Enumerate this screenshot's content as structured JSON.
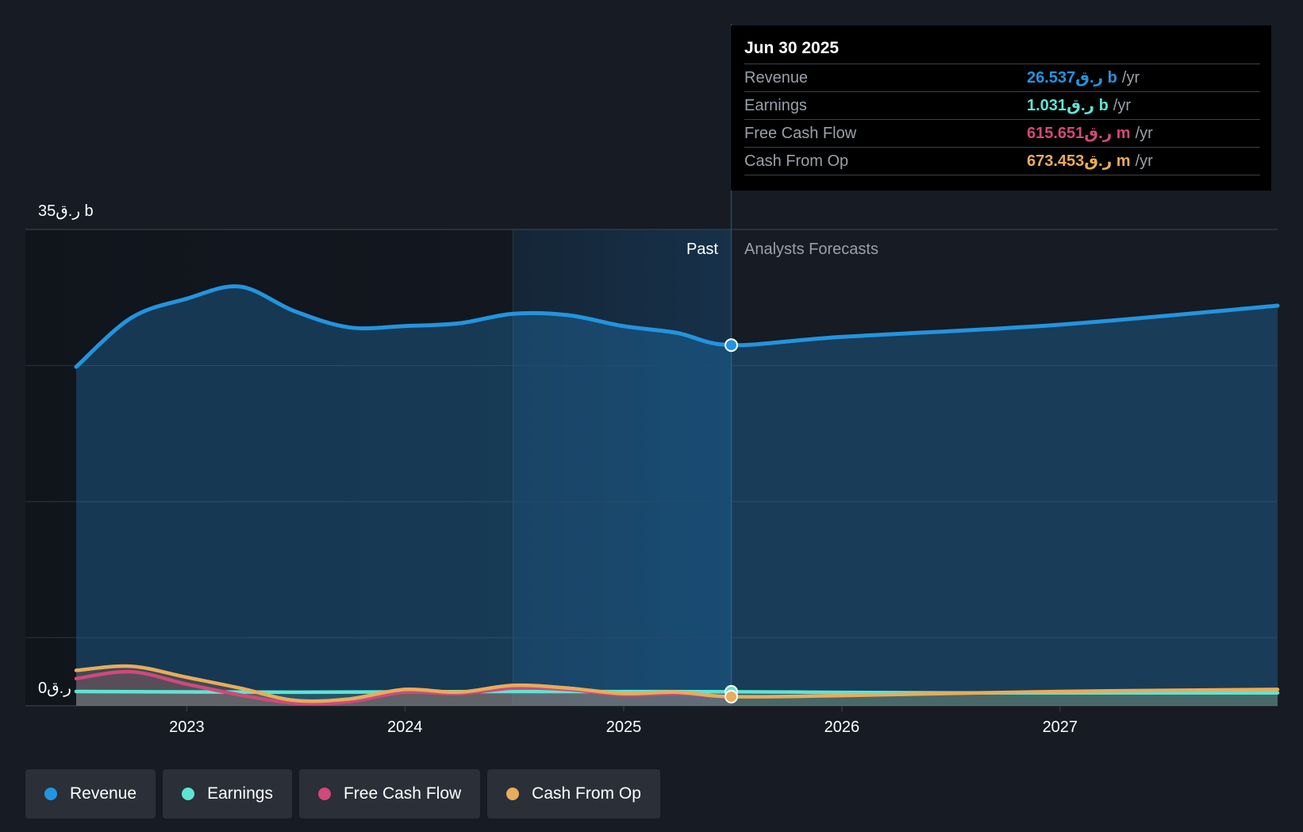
{
  "colors": {
    "revenue": "#2394df",
    "earnings": "#5ee4d3",
    "free_cash_flow": "#d1487b",
    "cash_from_op": "#e8ac5a",
    "background": "#161b24"
  },
  "tooltip": {
    "date": "Jun 30 2025",
    "rows": [
      {
        "label": "Revenue",
        "value": "26.537ر.ق b",
        "unit": "/yr"
      },
      {
        "label": "Earnings",
        "value": "1.031ر.ق b",
        "unit": "/yr"
      },
      {
        "label": "Free Cash Flow",
        "value": "615.651ر.ق m",
        "unit": "/yr"
      },
      {
        "label": "Cash From Op",
        "value": "673.453ر.ق m",
        "unit": "/yr"
      }
    ]
  },
  "legend": [
    "Revenue",
    "Earnings",
    "Free Cash Flow",
    "Cash From Op"
  ],
  "chart_data": {
    "type": "area",
    "y_top_label": "35ر.ق b",
    "y_bottom_label": "0ر.ق",
    "ylim": [
      0,
      35
    ],
    "ylim_unit": "billions",
    "xlim": [
      "2022-06-30",
      "2027-12-31"
    ],
    "x_ticks": [
      "2023",
      "2024",
      "2025",
      "2026",
      "2027"
    ],
    "past_label": "Past",
    "forecast_label": "Analysts Forecasts",
    "divider_date": "2025-06-30",
    "highlight_start_date": "2024-06-30",
    "grid": true,
    "legend_position": "bottom-left",
    "series": [
      {
        "name": "Revenue",
        "key": "revenue",
        "past": [
          [
            "2022-06-30",
            24.9
          ],
          [
            "2022-09-30",
            28.5
          ],
          [
            "2022-12-31",
            29.9
          ],
          [
            "2023-03-31",
            30.8
          ],
          [
            "2023-06-30",
            29.0
          ],
          [
            "2023-09-30",
            27.8
          ],
          [
            "2023-12-31",
            27.9
          ],
          [
            "2024-03-31",
            28.1
          ],
          [
            "2024-06-30",
            28.8
          ],
          [
            "2024-09-30",
            28.7
          ],
          [
            "2024-12-31",
            27.9
          ],
          [
            "2025-03-31",
            27.4
          ],
          [
            "2025-06-30",
            26.5
          ]
        ],
        "forecast": [
          [
            "2025-06-30",
            26.5
          ],
          [
            "2025-12-31",
            27.1
          ],
          [
            "2026-12-31",
            28.0
          ],
          [
            "2027-12-31",
            29.4
          ]
        ]
      },
      {
        "name": "Earnings",
        "key": "earnings",
        "past": [
          [
            "2022-06-30",
            1.05
          ],
          [
            "2023-06-30",
            1.0
          ],
          [
            "2024-06-30",
            1.05
          ],
          [
            "2025-06-30",
            1.03
          ]
        ],
        "forecast": [
          [
            "2025-06-30",
            1.03
          ],
          [
            "2026-06-30",
            0.95
          ],
          [
            "2027-12-31",
            0.95
          ]
        ]
      },
      {
        "name": "Free Cash Flow",
        "key": "free_cash_flow",
        "past": [
          [
            "2022-06-30",
            2.0
          ],
          [
            "2022-09-30",
            2.5
          ],
          [
            "2022-12-31",
            1.6
          ],
          [
            "2023-03-31",
            0.8
          ],
          [
            "2023-06-30",
            0.2
          ],
          [
            "2023-09-30",
            0.3
          ],
          [
            "2023-12-31",
            1.0
          ],
          [
            "2024-03-31",
            0.9
          ],
          [
            "2024-06-30",
            1.3
          ],
          [
            "2024-09-30",
            1.2
          ],
          [
            "2024-12-31",
            0.8
          ],
          [
            "2025-03-31",
            0.9
          ],
          [
            "2025-06-30",
            0.62
          ]
        ],
        "forecast": []
      },
      {
        "name": "Cash From Op",
        "key": "cash_from_op",
        "past": [
          [
            "2022-06-30",
            2.6
          ],
          [
            "2022-09-30",
            2.9
          ],
          [
            "2022-12-31",
            2.1
          ],
          [
            "2023-03-31",
            1.3
          ],
          [
            "2023-06-30",
            0.4
          ],
          [
            "2023-09-30",
            0.5
          ],
          [
            "2023-12-31",
            1.2
          ],
          [
            "2024-03-31",
            1.0
          ],
          [
            "2024-06-30",
            1.5
          ],
          [
            "2024-09-30",
            1.3
          ],
          [
            "2024-12-31",
            0.9
          ],
          [
            "2025-03-31",
            1.0
          ],
          [
            "2025-06-30",
            0.67
          ]
        ],
        "forecast": [
          [
            "2025-06-30",
            0.67
          ],
          [
            "2025-12-31",
            0.75
          ],
          [
            "2026-12-31",
            1.05
          ],
          [
            "2027-12-31",
            1.2
          ]
        ]
      }
    ]
  }
}
